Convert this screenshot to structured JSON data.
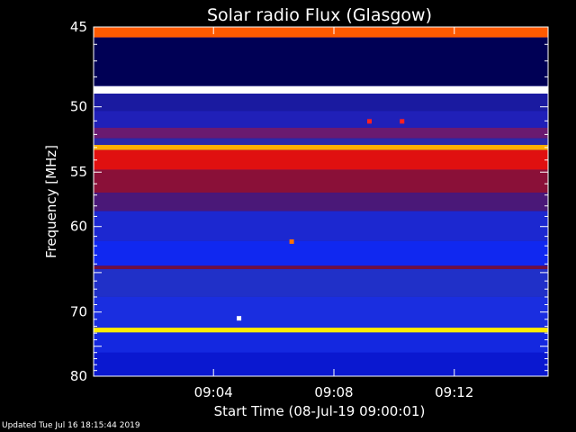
{
  "chart_data": {
    "type": "heatmap",
    "title": "Solar radio Flux (Glasgow)",
    "xlabel": "Start Time (08-Jul-19 09:00:01)",
    "ylabel": "Frequency [MHz]",
    "x_start": "09:00:01",
    "x_end": "09:15:07",
    "x_ticks": [
      "09:04",
      "09:08",
      "09:12"
    ],
    "ylim": [
      45,
      80
    ],
    "y_scale": "reciprocal",
    "y_ticks": [
      45,
      50,
      55,
      60,
      70,
      80
    ],
    "colormap": "rainbow (blue low → red → yellow/white high)",
    "background_color": "#0b14d8",
    "bands": [
      {
        "f_start": 45.0,
        "f_end": 45.6,
        "color": "#ff5a00"
      },
      {
        "f_start": 45.6,
        "f_end": 48.6,
        "color": "#000055"
      },
      {
        "f_start": 48.6,
        "f_end": 49.1,
        "color": "#ffffff"
      },
      {
        "f_start": 49.1,
        "f_end": 50.3,
        "color": "#1a1aa0"
      },
      {
        "f_start": 50.3,
        "f_end": 51.5,
        "color": "#2020b8"
      },
      {
        "f_start": 51.5,
        "f_end": 52.3,
        "color": "#6a1a70"
      },
      {
        "f_start": 52.3,
        "f_end": 52.8,
        "color": "#2a2aa8"
      },
      {
        "f_start": 52.8,
        "f_end": 53.2,
        "color": "#ffb000"
      },
      {
        "f_start": 53.2,
        "f_end": 54.8,
        "color": "#e01010"
      },
      {
        "f_start": 54.8,
        "f_end": 56.8,
        "color": "#8a1038"
      },
      {
        "f_start": 56.8,
        "f_end": 58.5,
        "color": "#4a1878"
      },
      {
        "f_start": 58.5,
        "f_end": 61.5,
        "color": "#1c28d0"
      },
      {
        "f_start": 61.5,
        "f_end": 64.2,
        "color": "#1028f0"
      },
      {
        "f_start": 64.2,
        "f_end": 64.6,
        "color": "#701040"
      },
      {
        "f_start": 64.6,
        "f_end": 68.0,
        "color": "#2030c8"
      },
      {
        "f_start": 68.0,
        "f_end": 72.2,
        "color": "#1a2ee0"
      },
      {
        "f_start": 72.2,
        "f_end": 72.9,
        "color": "#ffee00"
      },
      {
        "f_start": 72.9,
        "f_end": 76.0,
        "color": "#1428e0"
      },
      {
        "f_start": 76.0,
        "f_end": 80.0,
        "color": "#0a18d0"
      }
    ],
    "bursts": [
      {
        "time": "09:09:10",
        "freq": 51.0,
        "color": "#ff2020"
      },
      {
        "time": "09:10:15",
        "freq": 51.0,
        "color": "#ff2020"
      },
      {
        "time": "09:06:35",
        "freq": 61.5,
        "color": "#ff7000"
      },
      {
        "time": "09:04:50",
        "freq": 70.8,
        "color": "#ffffff"
      }
    ]
  },
  "footer": {
    "updated_text": "Updated Tue Jul 16 18:15:44 2019"
  }
}
